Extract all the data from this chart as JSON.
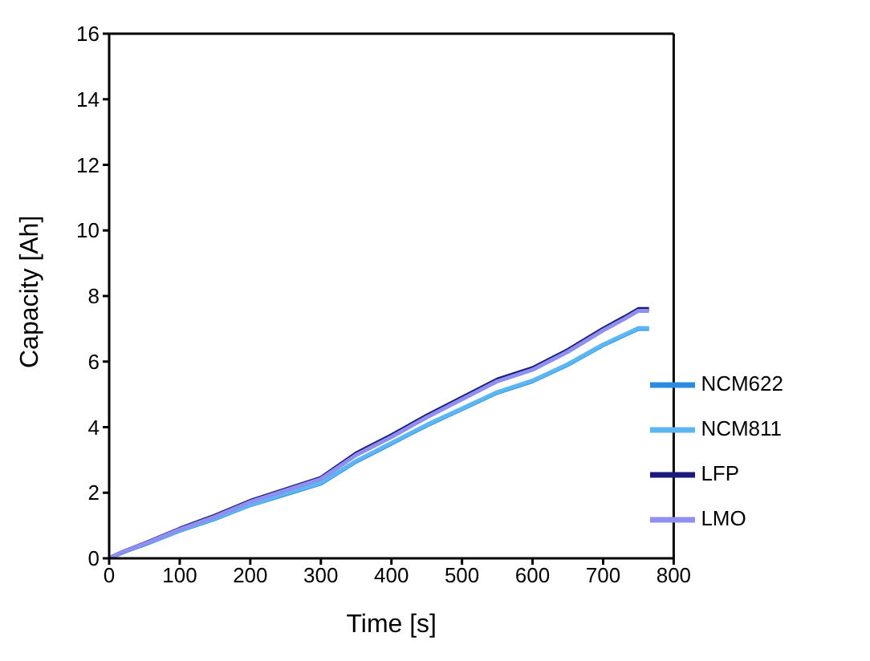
{
  "chart_data": {
    "type": "line",
    "xlabel": "Time [s]",
    "ylabel": "Capacity [Ah]",
    "x": [
      0,
      20,
      50,
      100,
      150,
      200,
      250,
      300,
      350,
      400,
      450,
      500,
      550,
      600,
      650,
      700,
      730,
      750,
      765
    ],
    "xlim": [
      0,
      800
    ],
    "xticks": [
      0,
      100,
      200,
      300,
      400,
      500,
      600,
      700,
      800
    ],
    "ylim": [
      0,
      16
    ],
    "yticks": [
      0,
      2,
      4,
      6,
      8,
      10,
      12,
      14,
      16
    ],
    "legend": "bottom right",
    "marker": "none",
    "line_style": "solid",
    "series": [
      {
        "name": "NCM622",
        "color": "#2a8ae6",
        "values": [
          0,
          0.19,
          0.42,
          0.84,
          1.2,
          1.62,
          1.95,
          2.28,
          2.95,
          3.5,
          4.05,
          4.55,
          5.05,
          5.4,
          5.9,
          6.5,
          6.8,
          7.0,
          7.0
        ]
      },
      {
        "name": "NCM811",
        "color": "#5cb6f2",
        "values": [
          0,
          0.19,
          0.43,
          0.85,
          1.22,
          1.63,
          1.97,
          2.3,
          2.97,
          3.52,
          4.07,
          4.57,
          5.07,
          5.42,
          5.92,
          6.52,
          6.82,
          7.02,
          7.02
        ]
      },
      {
        "name": "LFP",
        "color": "#1a1a7a",
        "values": [
          0,
          0.2,
          0.45,
          0.9,
          1.3,
          1.75,
          2.1,
          2.45,
          3.2,
          3.75,
          4.35,
          4.9,
          5.45,
          5.8,
          6.35,
          7.0,
          7.35,
          7.6,
          7.6
        ]
      },
      {
        "name": "LMO",
        "color": "#8f8ff0",
        "values": [
          0,
          0.2,
          0.44,
          0.88,
          1.27,
          1.72,
          2.07,
          2.42,
          3.15,
          3.7,
          4.3,
          4.85,
          5.4,
          5.75,
          6.3,
          6.95,
          7.3,
          7.55,
          7.55
        ]
      }
    ]
  }
}
